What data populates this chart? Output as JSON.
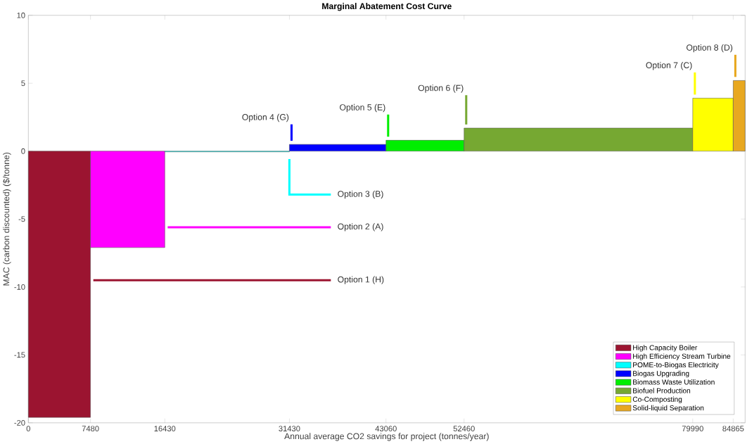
{
  "chart_data": {
    "type": "area",
    "title": "Marginal Abatement Cost Curve",
    "xlabel": "Annual average CO2 savings for project (tonnes/year)",
    "ylabel": "MAC (carbon discounted) ($/tonne)",
    "xlim": [
      0,
      86300
    ],
    "ylim": [
      -20,
      10
    ],
    "xticks": [
      0,
      7480,
      16430,
      31430,
      43060,
      52460,
      79990,
      84865
    ],
    "yticks": [
      -20,
      -15,
      -10,
      -5,
      0,
      5,
      10
    ],
    "grid": false,
    "legend": "bottom right",
    "series": [
      {
        "name": "High Capacity Boiler",
        "color": "#9b1430",
        "x": [
          0,
          7480
        ],
        "values": [
          -19.6,
          -19.6
        ]
      },
      {
        "name": "High Efficiency Stream Turbine",
        "color": "#ff00ff",
        "x": [
          7480,
          16430
        ],
        "values": [
          -7.1,
          -7.1
        ]
      },
      {
        "name": "POME-to-Biogas Electricity",
        "color": "#00ffff",
        "x": [
          16430,
          31430
        ],
        "values": [
          -0.05,
          -0.05
        ]
      },
      {
        "name": "Biogas Upgrading",
        "color": "#0000ff",
        "x": [
          31430,
          43060
        ],
        "values": [
          0.5,
          0.5
        ]
      },
      {
        "name": "Biomass Waste Utilization",
        "color": "#00ee00",
        "x": [
          43060,
          52460
        ],
        "values": [
          0.8,
          0.8
        ]
      },
      {
        "name": "Biofuel Production",
        "color": "#76a832",
        "x": [
          52460,
          79990
        ],
        "values": [
          1.7,
          1.7
        ]
      },
      {
        "name": "Co-Composting",
        "color": "#ffff00",
        "x": [
          79990,
          84865
        ],
        "values": [
          3.9,
          3.9
        ]
      },
      {
        "name": "Solid-liquid Separation",
        "color": "#e8a820",
        "x": [
          84865,
          86300
        ],
        "values": [
          5.2,
          5.2
        ]
      }
    ],
    "annotations": [
      "Option 1 (H)",
      "Option 2 (A)",
      "Option 3 (B)",
      "Option 4 (G)",
      "Option 5 (E)",
      "Option 6 (F)",
      "Option 7 (C)",
      "Option 8 (D)"
    ]
  }
}
